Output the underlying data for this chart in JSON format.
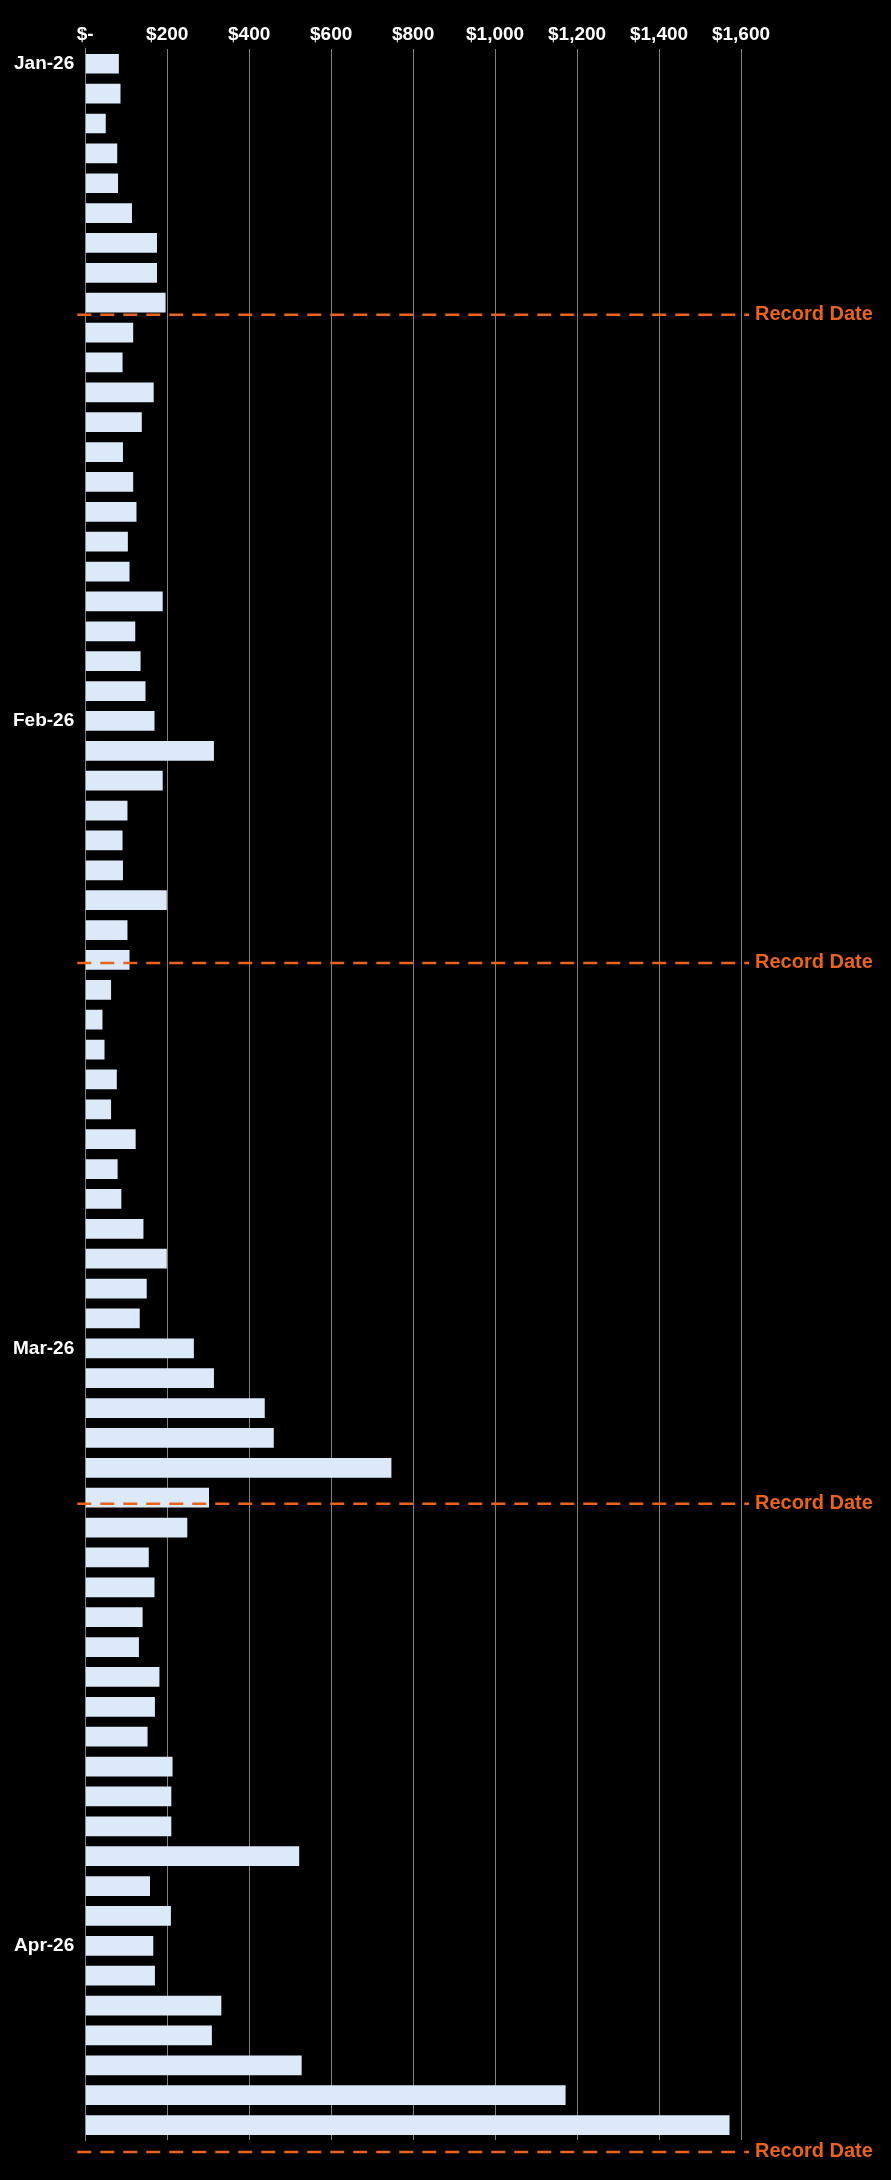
{
  "chart_data": {
    "type": "bar",
    "orientation": "horizontal",
    "categories": [
      "Jan-26",
      null,
      null,
      null,
      null,
      null,
      null,
      null,
      null,
      null,
      null,
      null,
      null,
      null,
      null,
      null,
      null,
      null,
      null,
      null,
      null,
      null,
      "Feb-26",
      null,
      null,
      null,
      null,
      null,
      null,
      null,
      null,
      null,
      null,
      null,
      null,
      null,
      null,
      null,
      null,
      null,
      null,
      null,
      null,
      "Mar-26",
      null,
      null,
      null,
      null,
      null,
      null,
      null,
      null,
      null,
      null,
      null,
      null,
      null,
      null,
      null,
      null,
      null,
      null,
      null,
      "Apr-26",
      null,
      null,
      null,
      null,
      null,
      null
    ],
    "values": [
      82,
      86,
      50,
      78,
      80,
      114,
      175,
      175,
      196,
      117,
      91,
      167,
      138,
      92,
      117,
      125,
      104,
      108,
      189,
      122,
      135,
      147,
      169,
      314,
      189,
      103,
      91,
      92,
      199,
      103,
      108,
      63,
      42,
      47,
      77,
      63,
      123,
      79,
      88,
      142,
      199,
      150,
      133,
      265,
      314,
      438,
      460,
      747,
      302,
      249,
      155,
      169,
      140,
      131,
      181,
      170,
      152,
      213,
      210,
      210,
      522,
      158,
      209,
      166,
      170,
      332,
      309,
      528,
      1172,
      1572
    ],
    "color": "#dbe9f8",
    "xlim": [
      0,
      1600
    ],
    "xticks": [
      {
        "value": 0,
        "label": "$-"
      },
      {
        "value": 200,
        "label": "$200"
      },
      {
        "value": 400,
        "label": "$400"
      },
      {
        "value": 600,
        "label": "$600"
      },
      {
        "value": 800,
        "label": "$800"
      },
      {
        "value": 1000,
        "label": "$1,000"
      },
      {
        "value": 1200,
        "label": "$1,200"
      },
      {
        "value": 1400,
        "label": "$1,400"
      },
      {
        "value": 1600,
        "label": "$1,600"
      }
    ],
    "grid": "x",
    "legend": false,
    "annotations": [
      "Record Date",
      "Record Date",
      "Record Date",
      "Record Date"
    ]
  }
}
